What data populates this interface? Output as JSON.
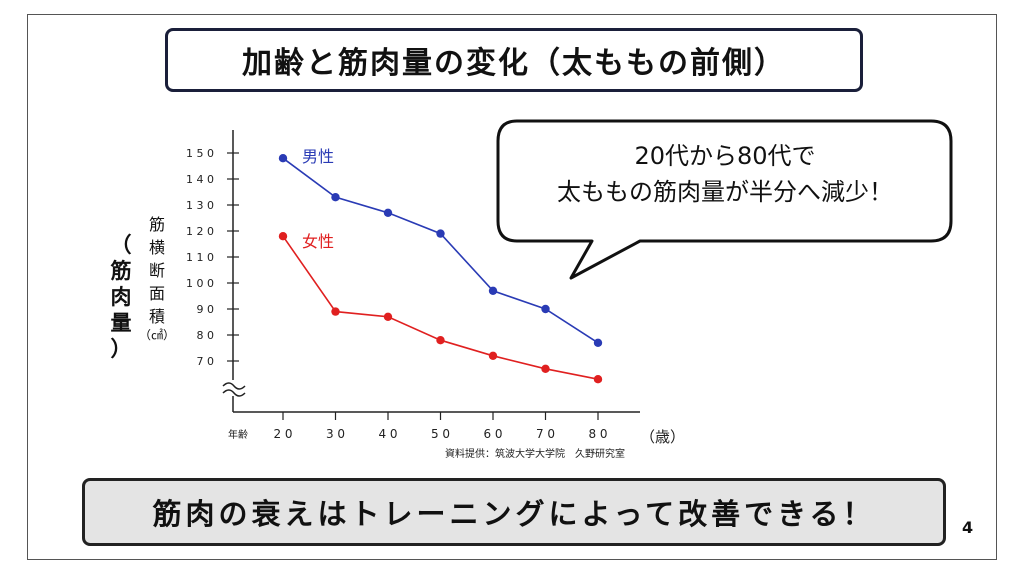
{
  "slide": {
    "title": "加齢と筋肉量の変化（太ももの前側）",
    "bubble": {
      "line1": "20代から80代で",
      "line2": "太ももの筋肉量が半分へ減少！"
    },
    "bottom_message": "筋肉の衰えはトレーニングによって改善できる！",
    "page_number": "4"
  },
  "chart_data": {
    "type": "line",
    "x": [
      20,
      30,
      40,
      50,
      60,
      70,
      80
    ],
    "x_tick_labels": [
      "2 0",
      "3 0",
      "4 0",
      "5 0",
      "6 0",
      "7 0",
      "8 0"
    ],
    "xlabel_left": "年齢",
    "xlabel_unit": "（歳）",
    "ylabel_outer": "（筋肉量）",
    "ylabel_inner": "筋横断面積",
    "ylabel_unit": "（㎠）",
    "y_ticks": [
      70,
      80,
      90,
      100,
      110,
      120,
      130,
      140,
      150
    ],
    "y_tick_labels": [
      "7 0",
      "8 0",
      "9 0",
      "1 0 0",
      "1 1 0",
      "1 2 0",
      "1 3 0",
      "1 4 0",
      "1 5 0"
    ],
    "ylim": [
      60,
      155
    ],
    "axis_break": true,
    "grid": false,
    "series": [
      {
        "name": "男性",
        "color": "#2a3bb5",
        "values": [
          148,
          133,
          127,
          119,
          97,
          90,
          77
        ]
      },
      {
        "name": "女性",
        "color": "#e02020",
        "values": [
          118,
          89,
          87,
          78,
          72,
          67,
          63
        ]
      }
    ],
    "source": "資料提供：筑波大学大学院　久野研究室"
  }
}
